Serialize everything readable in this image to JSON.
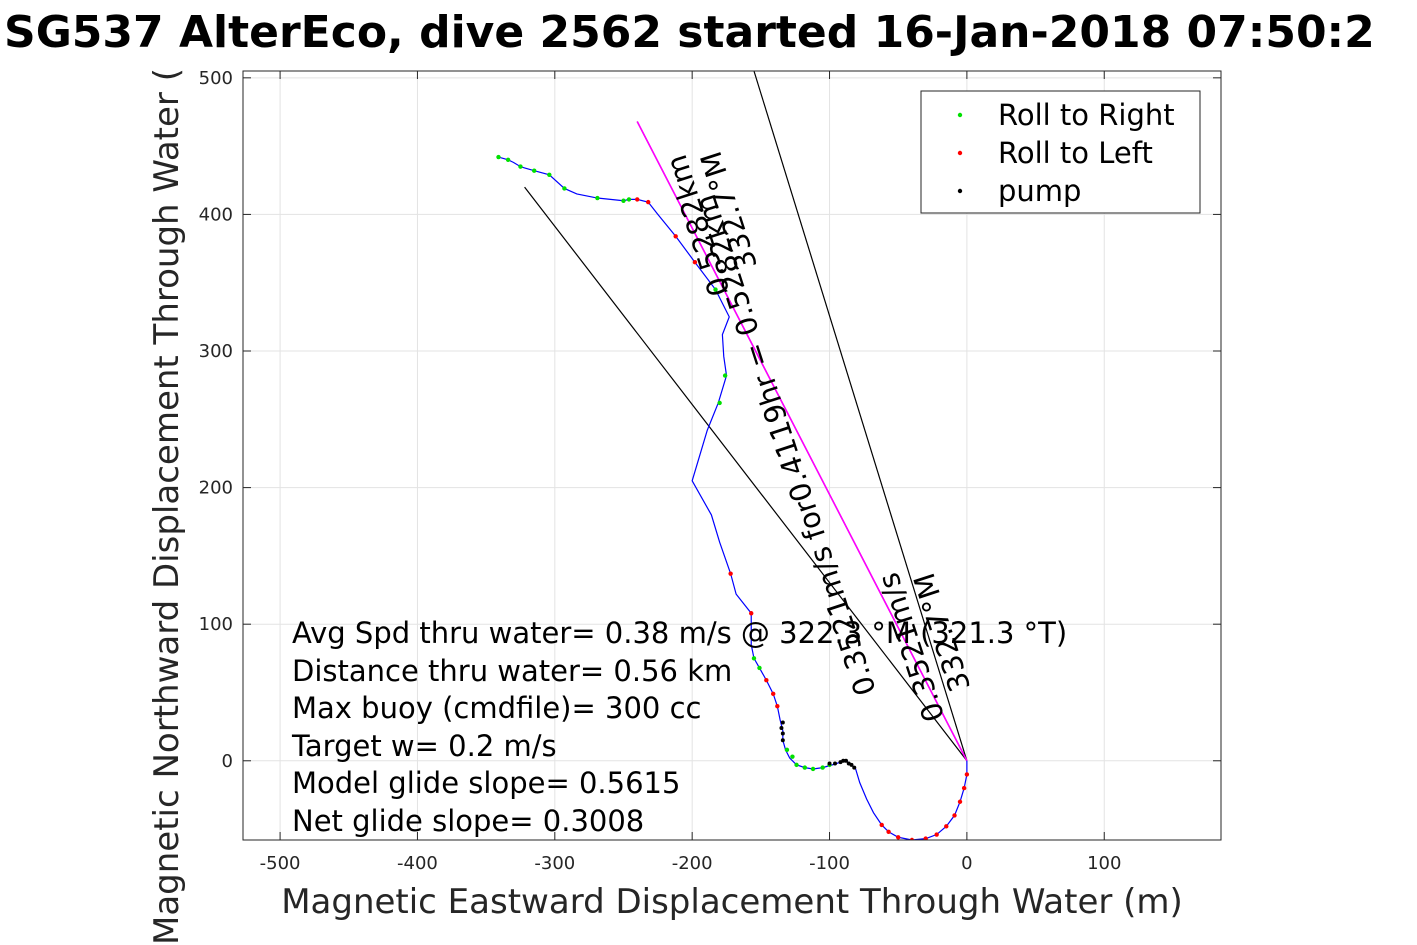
{
  "chart_data": {
    "type": "line",
    "title": "SG537 AlterEco, dive 2562 started 16-Jan-2018 07:50:2",
    "xlabel": "Magnetic Eastward Displacement Through Water (m)",
    "ylabel": "Magnetic Northward Displacement Through Water (",
    "xlim": [
      -527,
      185
    ],
    "ylim": [
      -58,
      505
    ],
    "xticks": [
      -500,
      -400,
      -300,
      -200,
      -100,
      0,
      100
    ],
    "yticks": [
      0,
      100,
      200,
      300,
      400,
      500
    ],
    "grid": true,
    "legend_position": "top-right",
    "legend": [
      {
        "name": "Roll to Right",
        "color": "#00e000"
      },
      {
        "name": "Roll to Left",
        "color": "#ff0000"
      },
      {
        "name": "pump",
        "color": "#000000"
      }
    ],
    "track": {
      "color": "#0000ff",
      "points": [
        [
          0,
          0
        ],
        [
          0,
          -10
        ],
        [
          -2,
          -20
        ],
        [
          -5,
          -30
        ],
        [
          -9,
          -40
        ],
        [
          -15,
          -48
        ],
        [
          -22,
          -54
        ],
        [
          -30,
          -57
        ],
        [
          -40,
          -58
        ],
        [
          -50,
          -56
        ],
        [
          -57,
          -52
        ],
        [
          -62,
          -47
        ],
        [
          -68,
          -38
        ],
        [
          -73,
          -28
        ],
        [
          -78,
          -16
        ],
        [
          -81,
          -6
        ],
        [
          -84,
          -3
        ],
        [
          -88,
          0
        ],
        [
          -92,
          -1
        ],
        [
          -98,
          -3
        ],
        [
          -105,
          -5
        ],
        [
          -112,
          -6
        ],
        [
          -118,
          -5
        ],
        [
          -124,
          -3
        ],
        [
          -129,
          2
        ],
        [
          -132,
          8
        ],
        [
          -134,
          15
        ],
        [
          -134,
          22
        ],
        [
          -136,
          30
        ],
        [
          -138,
          40
        ],
        [
          -141,
          49
        ],
        [
          -146,
          59
        ],
        [
          -151,
          68
        ],
        [
          -155,
          75
        ],
        [
          -157,
          85
        ],
        [
          -157,
          95
        ],
        [
          -157,
          108
        ],
        [
          -168,
          122
        ],
        [
          -172,
          137
        ],
        [
          -180,
          160
        ],
        [
          -186,
          180
        ],
        [
          -200,
          205
        ],
        [
          -189,
          242
        ],
        [
          -181,
          262
        ],
        [
          -175,
          282
        ],
        [
          -177,
          296
        ],
        [
          -178,
          312
        ],
        [
          -173,
          325
        ],
        [
          -183,
          345
        ],
        [
          -198,
          365
        ],
        [
          -212,
          384
        ],
        [
          -225,
          400
        ],
        [
          -232,
          409
        ],
        [
          -240,
          411
        ],
        [
          -246,
          411
        ],
        [
          -250,
          410
        ],
        [
          -269,
          412
        ],
        [
          -284,
          415
        ],
        [
          -293,
          419
        ],
        [
          -304,
          429
        ],
        [
          -315,
          432
        ],
        [
          -322,
          434
        ],
        [
          -325,
          435
        ],
        [
          -330,
          438
        ],
        [
          -334,
          440
        ],
        [
          -341,
          442
        ]
      ],
      "roll_right_points": [
        [
          -341,
          442
        ],
        [
          -334,
          440
        ],
        [
          -325,
          435
        ],
        [
          -315,
          432
        ],
        [
          -304,
          429
        ],
        [
          -293,
          419
        ],
        [
          -269,
          412
        ],
        [
          -250,
          410
        ],
        [
          -246,
          411
        ],
        [
          -183,
          345
        ],
        [
          -180,
          262
        ],
        [
          -176,
          282
        ],
        [
          -155,
          75
        ],
        [
          -151,
          68
        ],
        [
          -131,
          8
        ],
        [
          -127,
          3
        ],
        [
          -124,
          -3
        ],
        [
          -118,
          -5
        ],
        [
          -112,
          -6
        ],
        [
          -105,
          -5
        ],
        [
          -100,
          -3
        ]
      ],
      "roll_left_points": [
        [
          -240,
          411
        ],
        [
          -232,
          409
        ],
        [
          -212,
          384
        ],
        [
          -198,
          365
        ],
        [
          -172,
          137
        ],
        [
          -157,
          108
        ],
        [
          -146,
          59
        ],
        [
          -141,
          49
        ],
        [
          -138,
          40
        ],
        [
          0,
          -10
        ],
        [
          -2,
          -20
        ],
        [
          -5,
          -30
        ],
        [
          -9,
          -40
        ],
        [
          -15,
          -48
        ],
        [
          -22,
          -54
        ],
        [
          -30,
          -57
        ],
        [
          -40,
          -58
        ],
        [
          -50,
          -56
        ],
        [
          -57,
          -52
        ],
        [
          -62,
          -47
        ]
      ],
      "pump_points": [
        [
          -134,
          15
        ],
        [
          -134,
          20
        ],
        [
          -135,
          24
        ],
        [
          -134,
          28
        ],
        [
          -92,
          -1
        ],
        [
          -90,
          0
        ],
        [
          -88,
          0
        ],
        [
          -86,
          -2
        ],
        [
          -84,
          -3
        ],
        [
          -82,
          -5
        ],
        [
          -96,
          -2
        ],
        [
          -100,
          -2
        ]
      ]
    },
    "reference_lines": [
      {
        "color": "#000000",
        "from": [
          0,
          0
        ],
        "to": [
          -155,
          505
        ]
      },
      {
        "color": "#000000",
        "from": [
          0,
          0
        ],
        "to": [
          -322,
          420
        ]
      },
      {
        "color": "#000000",
        "from": [
          0,
          0
        ],
        "to": [
          -240,
          468
        ]
      },
      {
        "color": "#ff00ff",
        "from": [
          0,
          0
        ],
        "to": [
          -240,
          468
        ]
      }
    ],
    "rotated_annotations": [
      {
        "line1": "0.5282km",
        "line2": "332.7°M"
      },
      {
        "text": "0.3521m/s for0.4119hr = 0.5282km"
      },
      {
        "line1": "0.3521m/s",
        "line2": "332.7°M"
      }
    ],
    "annotations": [
      "Avg Spd thru water=  0.38 m/s @ 322.3 °M (321.3 °T)",
      "Distance thru water=  0.56 km",
      "Max buoy (cmdfile)= 300 cc",
      "Target w= 0.2 m/s",
      "Model glide slope= 0.5615",
      "Net glide slope= 0.3008"
    ]
  }
}
